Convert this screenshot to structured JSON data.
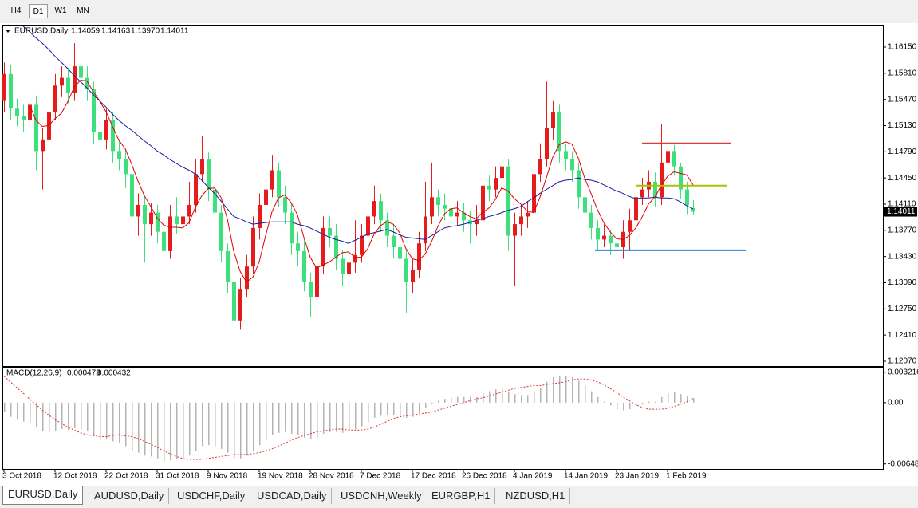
{
  "toolbar": {
    "timeframes": [
      "H4",
      "D1",
      "W1",
      "MN"
    ],
    "active": 1
  },
  "chart_data": [
    {
      "type": "candlestick",
      "title": "EURUSD,Daily",
      "last_bar_labels": [
        "1.14059",
        "1.14163",
        "1.13970",
        "1.14011"
      ],
      "categories": [
        "3 Oct 2018",
        null,
        null,
        null,
        null,
        null,
        null,
        null,
        "12 Oct 2018",
        null,
        null,
        null,
        null,
        null,
        null,
        null,
        "22 Oct 2018",
        null,
        null,
        null,
        null,
        null,
        null,
        null,
        "31 Oct 2018",
        null,
        null,
        null,
        null,
        null,
        null,
        null,
        "9 Nov 2018",
        null,
        null,
        null,
        null,
        null,
        null,
        null,
        "19 Nov 2018",
        null,
        null,
        null,
        null,
        null,
        null,
        null,
        "28 Nov 2018",
        null,
        null,
        null,
        null,
        null,
        null,
        null,
        "7 Dec 2018",
        null,
        null,
        null,
        null,
        null,
        null,
        null,
        "17 Dec 2018",
        null,
        null,
        null,
        null,
        null,
        null,
        null,
        "26 Dec 2018",
        null,
        null,
        null,
        null,
        null,
        null,
        null,
        "4 Jan 2019",
        null,
        null,
        null,
        null,
        null,
        null,
        null,
        "14 Jan 2019",
        null,
        null,
        null,
        null,
        null,
        null,
        null,
        "23 Jan 2019",
        null,
        null,
        null,
        null,
        null,
        null,
        null,
        "1 Feb 2019",
        null,
        null,
        null,
        null
      ],
      "open": [
        1.1545,
        1.158,
        1.1535,
        1.1525,
        1.152,
        1.154,
        1.148,
        1.1495,
        1.153,
        1.1565,
        1.1575,
        1.1555,
        1.159,
        1.1575,
        1.156,
        1.1505,
        1.1495,
        1.152,
        1.148,
        1.147,
        1.145,
        1.1395,
        1.141,
        1.1385,
        1.14,
        1.1375,
        1.135,
        1.1395,
        1.1385,
        1.1395,
        1.141,
        1.145,
        1.147,
        1.143,
        1.14,
        1.135,
        1.131,
        1.126,
        1.13,
        1.133,
        1.138,
        1.141,
        1.143,
        1.1455,
        1.142,
        1.14,
        1.136,
        1.135,
        1.131,
        1.129,
        1.133,
        1.138,
        1.137,
        1.134,
        1.132,
        1.1335,
        1.1345,
        1.137,
        1.1395,
        1.1415,
        1.139,
        1.137,
        1.1355,
        1.134,
        1.131,
        1.1325,
        1.136,
        1.1395,
        1.142,
        1.141,
        1.1405,
        1.1395,
        1.14,
        1.139,
        1.1385,
        1.139,
        1.1435,
        1.143,
        1.1445,
        1.146,
        1.137,
        1.1385,
        1.1395,
        1.14,
        1.145,
        1.147,
        1.151,
        1.153,
        1.148,
        1.147,
        1.1455,
        1.142,
        1.14,
        1.138,
        1.1365,
        1.137,
        1.136,
        1.1355,
        1.1375,
        1.139,
        1.142,
        1.143,
        1.144,
        1.142,
        1.1465,
        1.148,
        1.146,
        1.143,
        1.14059
      ],
      "high": [
        1.1595,
        1.1592,
        1.1548,
        1.154,
        1.1555,
        1.1552,
        1.151,
        1.1545,
        1.158,
        1.159,
        1.1588,
        1.162,
        1.1605,
        1.159,
        1.157,
        1.152,
        1.1535,
        1.153,
        1.1495,
        1.1482,
        1.146,
        1.1425,
        1.142,
        1.1412,
        1.141,
        1.139,
        1.141,
        1.142,
        1.1415,
        1.144,
        1.147,
        1.15,
        1.1478,
        1.144,
        1.141,
        1.136,
        1.132,
        1.1315,
        1.1345,
        1.1395,
        1.1425,
        1.146,
        1.1475,
        1.1465,
        1.1435,
        1.1412,
        1.1375,
        1.1365,
        1.1322,
        1.1345,
        1.1395,
        1.1395,
        1.1385,
        1.1352,
        1.135,
        1.139,
        1.1385,
        1.141,
        1.1435,
        1.1425,
        1.14,
        1.1385,
        1.1365,
        1.1352,
        1.134,
        1.1375,
        1.144,
        1.1465,
        1.143,
        1.1425,
        1.142,
        1.1415,
        1.1412,
        1.1402,
        1.141,
        1.145,
        1.1448,
        1.146,
        1.148,
        1.147,
        1.14,
        1.141,
        1.1415,
        1.1465,
        1.149,
        1.157,
        1.1545,
        1.154,
        1.149,
        1.148,
        1.1465,
        1.143,
        1.141,
        1.139,
        1.1385,
        1.1378,
        1.137,
        1.139,
        1.1405,
        1.1435,
        1.1445,
        1.1455,
        1.1452,
        1.1515,
        1.149,
        1.1488,
        1.1465,
        1.144,
        1.14163
      ],
      "low": [
        1.153,
        1.152,
        1.1512,
        1.1505,
        1.1508,
        1.1455,
        1.143,
        1.1482,
        1.152,
        1.155,
        1.1542,
        1.1545,
        1.156,
        1.1545,
        1.149,
        1.148,
        1.1482,
        1.1465,
        1.1455,
        1.1432,
        1.138,
        1.137,
        1.1335,
        1.137,
        1.136,
        1.1305,
        1.134,
        1.1372,
        1.1375,
        1.1385,
        1.14,
        1.144,
        1.1415,
        1.1385,
        1.1335,
        1.1295,
        1.1215,
        1.1248,
        1.129,
        1.132,
        1.1365,
        1.1395,
        1.142,
        1.1408,
        1.1385,
        1.1345,
        1.133,
        1.1298,
        1.1265,
        1.1275,
        1.132,
        1.1355,
        1.1325,
        1.1305,
        1.131,
        1.1322,
        1.1335,
        1.136,
        1.1385,
        1.1375,
        1.1355,
        1.134,
        1.132,
        1.127,
        1.1295,
        1.1315,
        1.135,
        1.1385,
        1.1395,
        1.139,
        1.138,
        1.1382,
        1.1375,
        1.136,
        1.137,
        1.138,
        1.1415,
        1.142,
        1.143,
        1.135,
        1.1305,
        1.137,
        1.138,
        1.139,
        1.144,
        1.146,
        1.1495,
        1.1465,
        1.1455,
        1.144,
        1.1405,
        1.1385,
        1.1365,
        1.135,
        1.1355,
        1.1345,
        1.129,
        1.134,
        1.135,
        1.1375,
        1.141,
        1.142,
        1.1408,
        1.141,
        1.1455,
        1.1448,
        1.1418,
        1.1398,
        1.1397
      ],
      "close": [
        1.158,
        1.1535,
        1.1525,
        1.152,
        1.154,
        1.148,
        1.1495,
        1.153,
        1.1565,
        1.1575,
        1.1555,
        1.159,
        1.1575,
        1.156,
        1.1505,
        1.1495,
        1.152,
        1.148,
        1.147,
        1.145,
        1.1395,
        1.141,
        1.1385,
        1.14,
        1.1375,
        1.135,
        1.1395,
        1.1385,
        1.1395,
        1.141,
        1.145,
        1.147,
        1.143,
        1.14,
        1.135,
        1.131,
        1.126,
        1.13,
        1.133,
        1.138,
        1.141,
        1.143,
        1.1455,
        1.142,
        1.14,
        1.136,
        1.135,
        1.131,
        1.129,
        1.133,
        1.138,
        1.137,
        1.134,
        1.132,
        1.1335,
        1.1345,
        1.137,
        1.1395,
        1.1415,
        1.139,
        1.137,
        1.1355,
        1.134,
        1.131,
        1.1325,
        1.136,
        1.1395,
        1.142,
        1.141,
        1.1405,
        1.1395,
        1.14,
        1.139,
        1.1385,
        1.139,
        1.1435,
        1.143,
        1.1445,
        1.146,
        1.137,
        1.1385,
        1.1395,
        1.14,
        1.145,
        1.147,
        1.151,
        1.153,
        1.148,
        1.147,
        1.1455,
        1.142,
        1.14,
        1.138,
        1.1365,
        1.137,
        1.136,
        1.1355,
        1.1375,
        1.139,
        1.142,
        1.143,
        1.144,
        1.142,
        1.1465,
        1.148,
        1.146,
        1.143,
        1.141,
        1.14011
      ],
      "up_color": "#e41c1c",
      "down_color": "#3ee07e",
      "ma_fast": {
        "color": "#e00000",
        "values": [
          null,
          null,
          null,
          null,
          1.154,
          1.152,
          1.1512,
          1.1513,
          1.1522,
          1.1529,
          1.1544,
          1.1563,
          1.1572,
          1.1571,
          1.1557,
          1.1545,
          1.1531,
          1.1512,
          1.1494,
          1.1483,
          1.1463,
          1.1441,
          1.1422,
          1.1408,
          1.1393,
          1.1384,
          1.1381,
          1.1381,
          1.138,
          1.1387,
          1.1407,
          1.1422,
          1.1431,
          1.1432,
          1.142,
          1.1392,
          1.135,
          1.1324,
          1.131,
          1.1316,
          1.1336,
          1.137,
          1.1401,
          1.1419,
          1.1423,
          1.1413,
          1.1397,
          1.1368,
          1.1342,
          1.1328,
          1.1332,
          1.1336,
          1.1342,
          1.1348,
          1.1349,
          1.1342,
          1.1342,
          1.1353,
          1.1372,
          1.1383,
          1.1388,
          1.1385,
          1.1374,
          1.1353,
          1.134,
          1.1338,
          1.1346,
          1.1362,
          1.1382,
          1.1398,
          1.1405,
          1.1406,
          1.14,
          1.1395,
          1.1392,
          1.14,
          1.1406,
          1.1417,
          1.1432,
          1.1428,
          1.1418,
          1.1411,
          1.1402,
          1.14,
          1.142,
          1.1445,
          1.1472,
          1.1488,
          1.1492,
          1.1489,
          1.1471,
          1.1445,
          1.1425,
          1.1404,
          1.1387,
          1.1375,
          1.1366,
          1.1365,
          1.137,
          1.138,
          1.1394,
          1.1411,
          1.142,
          1.1435,
          1.1447,
          1.1453,
          1.1451,
          1.1449,
          1.1436
        ]
      },
      "ma_slow": {
        "color": "#1a1a9c",
        "values": [
          null,
          null,
          null,
          1.1642,
          1.1635,
          1.1627,
          1.162,
          1.1612,
          1.1603,
          1.1595,
          1.1587,
          1.1578,
          1.157,
          1.1562,
          1.1553,
          1.1545,
          1.1537,
          1.1528,
          1.152,
          1.1513,
          1.1507,
          1.15,
          1.1493,
          1.1487,
          1.148,
          1.1475,
          1.1469,
          1.1464,
          1.1459,
          1.1455,
          1.145,
          1.1442,
          1.1433,
          1.1425,
          1.1415,
          1.1405,
          1.1395,
          1.1392,
          1.1388,
          1.1385,
          1.1386,
          1.1387,
          1.1388,
          1.1388,
          1.1388,
          1.1388,
          1.1385,
          1.1383,
          1.138,
          1.1376,
          1.1372,
          1.1368,
          1.1365,
          1.1363,
          1.136,
          1.1364,
          1.1368,
          1.1372,
          1.1374,
          1.1376,
          1.1378,
          1.1375,
          1.1371,
          1.1368,
          1.1367,
          1.1366,
          1.1365,
          1.137,
          1.1375,
          1.138,
          1.1382,
          1.1383,
          1.1385,
          1.1387,
          1.139,
          1.1392,
          1.1395,
          1.1397,
          1.14,
          1.1403,
          1.1405,
          1.1408,
          1.1414,
          1.1419,
          1.1425,
          1.143,
          1.1435,
          1.144,
          1.1442,
          1.1443,
          1.1445,
          1.1443,
          1.1442,
          1.144,
          1.1436,
          1.1432,
          1.1428,
          1.1425,
          1.1421,
          1.1418,
          1.1419,
          1.1419,
          1.142,
          1.1419,
          1.1419,
          1.1418,
          1.1414,
          1.1409,
          1.1405
        ]
      },
      "hlines": [
        {
          "value": 1.149,
          "color": "#e03a3a"
        },
        {
          "value": 1.1435,
          "color": "#a8c400"
        },
        {
          "value": 1.1351,
          "color": "#2f80d8"
        }
      ],
      "ylim": [
        1.12018,
        1.16419
      ],
      "yticks": [
        {
          "value": 1.1615,
          "label": "1.16150"
        },
        {
          "value": 1.1581,
          "label": "1.15810"
        },
        {
          "value": 1.1547,
          "label": "1.15470"
        },
        {
          "value": 1.1513,
          "label": "1.15130"
        },
        {
          "value": 1.1479,
          "label": "1.14790"
        },
        {
          "value": 1.1445,
          "label": "1.14450"
        },
        {
          "value": 1.1411,
          "label": "1.14110"
        },
        {
          "value": 1.1377,
          "label": "1.13770"
        },
        {
          "value": 1.1343,
          "label": "1.13430"
        },
        {
          "value": 1.1309,
          "label": "1.13090"
        },
        {
          "value": 1.1275,
          "label": "1.12750"
        },
        {
          "value": 1.1241,
          "label": "1.12410"
        },
        {
          "value": 1.1207,
          "label": "1.12070"
        }
      ]
    },
    {
      "type": "macd",
      "title": "MACD(12,26,9)",
      "color": "#b4b4b4",
      "values": [
        -0.001,
        -0.0015,
        -0.0018,
        -0.002,
        -0.0022,
        -0.0026,
        -0.003,
        -0.0031,
        -0.003,
        -0.0028,
        -0.0029,
        -0.0027,
        -0.0028,
        -0.003,
        -0.0035,
        -0.0038,
        -0.0038,
        -0.0041,
        -0.0043,
        -0.0046,
        -0.0051,
        -0.0053,
        -0.0056,
        -0.0057,
        -0.0059,
        -0.0062,
        -0.0061,
        -0.006,
        -0.0058,
        -0.0056,
        -0.0051,
        -0.0046,
        -0.0045,
        -0.0046,
        -0.0049,
        -0.0053,
        -0.0059,
        -0.0059,
        -0.0056,
        -0.0051,
        -0.0045,
        -0.004,
        -0.0034,
        -0.0032,
        -0.0031,
        -0.0033,
        -0.0034,
        -0.0037,
        -0.0039,
        -0.0037,
        -0.0033,
        -0.0031,
        -0.0031,
        -0.0032,
        -0.003,
        -0.0028,
        -0.0025,
        -0.0021,
        -0.0016,
        -0.0014,
        -0.0013,
        -0.0013,
        -0.0014,
        -0.0016,
        -0.0015,
        -0.0011,
        -0.0006,
        -0.0001,
        0.0002,
        0.0004,
        0.0005,
        0.0006,
        0.0006,
        0.0006,
        0.0006,
        0.001,
        0.0012,
        0.0014,
        0.0016,
        0.0011,
        0.0009,
        0.0008,
        0.0008,
        0.0012,
        0.0016,
        0.0022,
        0.0027,
        0.0028,
        0.0028,
        0.0027,
        0.0023,
        0.0018,
        0.0012,
        0.0006,
        0.0001,
        -0.0003,
        -0.0007,
        -0.0008,
        -0.0007,
        -0.0004,
        -0.0002,
        0.0001,
        0.0001,
        0.0006,
        0.001,
        0.0011,
        0.0009,
        0.0007,
        0.000473
      ],
      "signal": {
        "color": "#e03030",
        "values": [
          0.0028,
          0.0022,
          0.0016,
          0.001,
          0.0004,
          -0.0002,
          -0.0008,
          -0.0013,
          -0.0018,
          -0.0022,
          -0.0026,
          -0.0029,
          -0.0032,
          -0.0034,
          -0.0035,
          -0.0036,
          -0.0036,
          -0.0035,
          -0.0034,
          -0.0035,
          -0.0036,
          -0.0038,
          -0.0041,
          -0.0044,
          -0.0047,
          -0.0051,
          -0.0054,
          -0.0057,
          -0.0059,
          -0.006,
          -0.006,
          -0.006,
          -0.0059,
          -0.0058,
          -0.0057,
          -0.0056,
          -0.0055,
          -0.0055,
          -0.0055,
          -0.0054,
          -0.0053,
          -0.0051,
          -0.0049,
          -0.0046,
          -0.0043,
          -0.004,
          -0.0037,
          -0.0035,
          -0.0033,
          -0.0031,
          -0.003,
          -0.0029,
          -0.0028,
          -0.0028,
          -0.0029,
          -0.0029,
          -0.0029,
          -0.0028,
          -0.0026,
          -0.0023,
          -0.002,
          -0.0017,
          -0.0015,
          -0.0014,
          -0.0013,
          -0.0012,
          -0.0011,
          -0.001,
          -0.0008,
          -0.0006,
          -0.0004,
          -0.0002,
          0,
          0.0002,
          0.0004,
          0.0005,
          0.0007,
          0.0009,
          0.0011,
          0.0013,
          0.0015,
          0.0016,
          0.0017,
          0.0018,
          0.0018,
          0.0019,
          0.002,
          0.0021,
          0.0022,
          0.0024,
          0.0025,
          0.0025,
          0.0024,
          0.0022,
          0.0019,
          0.0015,
          0.0011,
          0.0006,
          0.0002,
          -0.0002,
          -0.0005,
          -0.0007,
          -0.0007,
          -0.0007,
          -0.0006,
          -0.0004,
          -0.0002,
          0.0001,
          0.000432
        ]
      },
      "ylim": [
        -0.0071,
        0.0037
      ],
      "yticks": [
        0.003216,
        {
          "value": 0,
          "label": "0.00"
        },
        -0.006485
      ]
    }
  ],
  "tabs": [
    "EURUSD,Daily",
    "AUDUSD,Daily",
    "USDCHF,Daily",
    "USDCAD,Daily",
    "USDCNH,Weekly",
    "EURGBP,H1",
    "NZDUSD,H1"
  ],
  "active_tab": 0
}
